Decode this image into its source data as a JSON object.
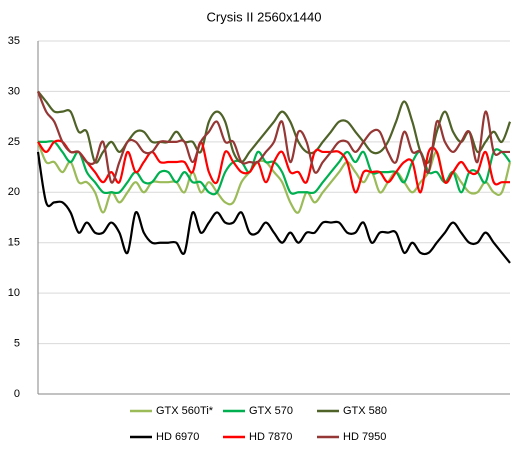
{
  "chart_data": {
    "type": "line",
    "title": "Crysis II 2560x1440",
    "categories": [
      null,
      null,
      null,
      null,
      null,
      null,
      null,
      null,
      null,
      null,
      null,
      null,
      null,
      null,
      null,
      null,
      null,
      null,
      null,
      null,
      null,
      null,
      null,
      null,
      null,
      null,
      null,
      null,
      null,
      null,
      null,
      null,
      null,
      null,
      null,
      null,
      null,
      null,
      null,
      null,
      null,
      null,
      null,
      null,
      null,
      null,
      null,
      null,
      null,
      null,
      null,
      null,
      null,
      null,
      null,
      null,
      null,
      null,
      null
    ],
    "series": [
      {
        "name": "GTX 560Ti*",
        "color": "#9bbb59",
        "values": [
          25,
          23,
          23,
          22,
          23,
          21,
          21,
          20,
          18,
          20,
          19,
          20,
          21,
          20,
          21,
          21,
          21,
          21,
          20,
          22,
          20,
          21,
          20,
          19,
          19,
          21,
          22,
          23,
          23,
          22,
          21,
          19,
          18,
          20,
          19,
          20,
          21,
          22,
          23,
          22,
          21,
          22,
          20,
          21,
          22,
          21,
          20,
          21,
          22,
          24,
          21,
          22,
          21,
          20,
          20,
          21,
          20,
          20,
          23
        ]
      },
      {
        "name": "GTX 570",
        "color": "#00b050",
        "values": [
          25,
          25,
          25,
          24,
          23,
          24,
          22,
          21,
          20,
          20,
          20,
          21,
          22,
          21,
          21,
          22,
          22,
          21,
          22,
          21,
          21,
          20,
          20,
          22,
          23,
          23,
          22,
          24,
          23,
          23,
          22,
          20,
          20,
          20,
          20,
          21,
          22,
          23,
          24,
          23,
          24,
          22,
          22,
          22,
          22,
          21,
          23,
          24,
          22,
          22,
          21,
          22,
          20,
          22,
          22,
          21,
          24,
          24,
          23
        ]
      },
      {
        "name": "GTX 580",
        "color": "#4f6228",
        "values": [
          30,
          29,
          28,
          28,
          28,
          26,
          26,
          23,
          24,
          25,
          24,
          25,
          26,
          26,
          25,
          25,
          25,
          26,
          25,
          25,
          24,
          27,
          28,
          27,
          24,
          23,
          24,
          25,
          26,
          27,
          28,
          27,
          25,
          24,
          24,
          25,
          26,
          27,
          27,
          26,
          25,
          24,
          24,
          25,
          27,
          29,
          27,
          24,
          23,
          26,
          28,
          26,
          25,
          26,
          24,
          25,
          26,
          25,
          27
        ]
      },
      {
        "name": "HD 6970",
        "color": "#000000",
        "values": [
          24,
          19,
          19,
          19,
          18,
          16,
          17,
          16,
          16,
          17,
          16,
          14,
          18,
          16,
          15,
          15,
          15,
          15,
          14,
          18,
          16,
          17,
          18,
          17,
          17,
          18,
          16,
          16,
          17,
          16,
          15,
          16,
          15,
          16,
          16,
          17,
          17,
          17,
          16,
          16,
          17,
          15,
          16,
          16,
          16,
          14,
          15,
          14,
          14,
          15,
          16,
          17,
          16,
          15,
          15,
          16,
          15,
          14,
          13
        ]
      },
      {
        "name": "HD 7870",
        "color": "#ff0000",
        "values": [
          25,
          24,
          25,
          25,
          24,
          24,
          23,
          22,
          21,
          22,
          21,
          24,
          22,
          23,
          24,
          23,
          23,
          23,
          23,
          22,
          25,
          22,
          21,
          24,
          23,
          22,
          22,
          23,
          21,
          23,
          24,
          22,
          22,
          21,
          24,
          24,
          24,
          24,
          23,
          20,
          22,
          22,
          22,
          21,
          22,
          23,
          23,
          20,
          24,
          24,
          21,
          22,
          23,
          22,
          22,
          24,
          21,
          21,
          21
        ]
      },
      {
        "name": "HD 7950",
        "color": "#953735",
        "values": [
          30,
          28,
          27,
          25,
          24,
          24,
          23,
          23,
          25,
          21,
          23,
          25,
          25,
          24,
          24,
          25,
          25,
          25,
          25,
          23,
          25,
          26,
          27,
          25,
          25,
          23,
          23,
          23,
          24,
          25,
          27,
          23,
          26,
          25,
          22,
          23,
          24,
          25,
          25,
          24,
          25,
          26,
          26,
          24,
          23,
          26,
          24,
          24,
          22,
          27,
          25,
          24,
          25,
          26,
          23,
          28,
          24,
          24,
          24
        ]
      }
    ],
    "ylim": [
      0,
      35
    ],
    "yticks": [
      0,
      5,
      10,
      15,
      20,
      25,
      30,
      35
    ],
    "grid": true,
    "legend": "bottom"
  }
}
